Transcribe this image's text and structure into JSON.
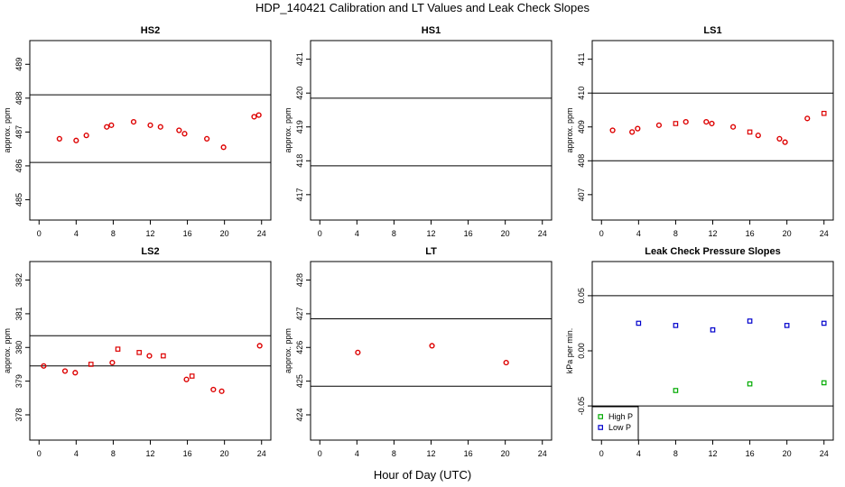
{
  "figure": {
    "title": "HDP_140421  Calibration and LT Values and Leak Check Slopes",
    "xlabel": "Hour of Day (UTC)"
  },
  "chart_data": [
    {
      "type": "scatter",
      "title": "HS2",
      "ylabel": "approx. ppm",
      "xlim": [
        -1,
        25
      ],
      "xticks": [
        0,
        4,
        8,
        12,
        16,
        20,
        24
      ],
      "ylim": [
        484.4,
        489.7
      ],
      "yticks": [
        485,
        486,
        487,
        488,
        489
      ],
      "hlines": [
        488.1,
        486.1
      ],
      "series": [
        {
          "name": "points",
          "color": "#dd0000",
          "marker": "circle",
          "points": [
            [
              2.2,
              486.8
            ],
            [
              4,
              486.75
            ],
            [
              5.1,
              486.9
            ],
            [
              7.3,
              487.15
            ],
            [
              7.8,
              487.2
            ],
            [
              10.2,
              487.3
            ],
            [
              12,
              487.2
            ],
            [
              13.1,
              487.15
            ],
            [
              15.1,
              487.05
            ],
            [
              15.7,
              486.95
            ],
            [
              18.1,
              486.8
            ],
            [
              19.9,
              486.55
            ],
            [
              23.2,
              487.45
            ],
            [
              23.7,
              487.5
            ]
          ]
        }
      ]
    },
    {
      "type": "scatter",
      "title": "HS1",
      "ylabel": "approx. ppm",
      "xlim": [
        -1,
        25
      ],
      "xticks": [
        0,
        4,
        8,
        12,
        16,
        20,
        24
      ],
      "ylim": [
        416.25,
        421.55
      ],
      "yticks": [
        417,
        418,
        419,
        420,
        421
      ],
      "hlines": [
        419.85,
        417.85
      ],
      "series": []
    },
    {
      "type": "scatter",
      "title": "LS1",
      "ylabel": "approx. ppm",
      "xlim": [
        -1,
        25
      ],
      "xticks": [
        0,
        4,
        8,
        12,
        16,
        20,
        24
      ],
      "ylim": [
        406.25,
        411.55
      ],
      "yticks": [
        407,
        408,
        409,
        410,
        411
      ],
      "hlines": [
        410.0,
        408.0
      ],
      "series": [
        {
          "name": "points",
          "color": "#dd0000",
          "marker": "circle",
          "points": [
            [
              1.2,
              408.9
            ],
            [
              3.3,
              408.85
            ],
            [
              3.9,
              408.95
            ],
            [
              6.2,
              409.05
            ],
            [
              9.1,
              409.15
            ],
            [
              11.3,
              409.15
            ],
            [
              11.9,
              409.1
            ],
            [
              14.2,
              409.0
            ],
            [
              16.9,
              408.75
            ],
            [
              19.2,
              408.65
            ],
            [
              19.8,
              408.55
            ],
            [
              22.2,
              409.25
            ]
          ]
        },
        {
          "name": "squares",
          "color": "#dd0000",
          "marker": "square",
          "points": [
            [
              8.0,
              409.1
            ],
            [
              16.0,
              408.85
            ],
            [
              24.0,
              409.4
            ]
          ]
        }
      ]
    },
    {
      "type": "scatter",
      "title": "LS2",
      "ylabel": "approx. ppm",
      "xlim": [
        -1,
        25
      ],
      "xticks": [
        0,
        4,
        8,
        12,
        16,
        20,
        24
      ],
      "ylim": [
        377.25,
        382.55
      ],
      "yticks": [
        378,
        379,
        380,
        381,
        382
      ],
      "hlines": [
        380.35,
        379.45
      ],
      "series": [
        {
          "name": "points",
          "color": "#dd0000",
          "marker": "circle",
          "points": [
            [
              0.5,
              379.45
            ],
            [
              2.8,
              379.3
            ],
            [
              3.9,
              379.25
            ],
            [
              7.9,
              379.55
            ],
            [
              11.9,
              379.75
            ],
            [
              15.9,
              379.05
            ],
            [
              18.8,
              378.75
            ],
            [
              19.7,
              378.7
            ],
            [
              23.8,
              380.05
            ]
          ]
        },
        {
          "name": "squares",
          "color": "#dd0000",
          "marker": "square",
          "points": [
            [
              5.6,
              379.5
            ],
            [
              8.5,
              379.95
            ],
            [
              10.8,
              379.85
            ],
            [
              13.4,
              379.75
            ],
            [
              16.5,
              379.15
            ]
          ]
        }
      ]
    },
    {
      "type": "scatter",
      "title": "LT",
      "ylabel": "approx. ppm",
      "xlim": [
        -1,
        25
      ],
      "xticks": [
        0,
        4,
        8,
        12,
        16,
        20,
        24
      ],
      "ylim": [
        423.25,
        428.55
      ],
      "yticks": [
        424,
        425,
        426,
        427,
        428
      ],
      "hlines": [
        426.85,
        424.85
      ],
      "series": [
        {
          "name": "points",
          "color": "#dd0000",
          "marker": "circle",
          "points": [
            [
              4.1,
              425.85
            ],
            [
              12.1,
              426.05
            ],
            [
              20.1,
              425.55
            ]
          ]
        }
      ]
    },
    {
      "type": "scatter",
      "title": "Leak Check Pressure Slopes",
      "ylabel": "kPa per min.",
      "xlim": [
        -1,
        25
      ],
      "xticks": [
        0,
        4,
        8,
        12,
        16,
        20,
        24
      ],
      "ylim": [
        -0.081,
        0.081
      ],
      "yticks": [
        -0.05,
        0.0,
        0.05
      ],
      "ytick_labels": [
        "-0.05",
        "0.00",
        "0.05"
      ],
      "hlines": [
        0.05,
        -0.05
      ],
      "series": [
        {
          "name": "High P",
          "color": "#00aa00",
          "marker": "square",
          "points": [
            [
              8,
              -0.036
            ],
            [
              16,
              -0.03
            ],
            [
              24,
              -0.029
            ]
          ]
        },
        {
          "name": "Low P",
          "color": "#0000cc",
          "marker": "square",
          "points": [
            [
              4,
              0.025
            ],
            [
              8,
              0.023
            ],
            [
              12,
              0.019
            ],
            [
              16,
              0.027
            ],
            [
              20,
              0.023
            ],
            [
              24,
              0.025
            ]
          ]
        }
      ],
      "legend": {
        "position": "bottom-left",
        "entries": [
          "High P",
          "Low P"
        ]
      }
    }
  ]
}
